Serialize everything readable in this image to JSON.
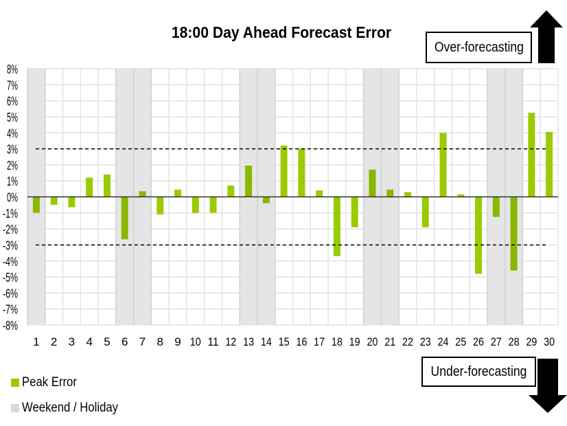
{
  "chart_data": {
    "type": "bar",
    "title": "18:00 Day Ahead Forecast Error",
    "categories": [
      "1",
      "2",
      "3",
      "4",
      "5",
      "6",
      "7",
      "8",
      "9",
      "10",
      "11",
      "12",
      "13",
      "14",
      "15",
      "16",
      "17",
      "18",
      "19",
      "20",
      "21",
      "22",
      "23",
      "24",
      "25",
      "26",
      "27",
      "28",
      "29",
      "30"
    ],
    "series": [
      {
        "name": "Peak Error",
        "unit": "%",
        "values": [
          -1.0,
          -0.5,
          -0.65,
          1.2,
          1.4,
          -2.65,
          0.35,
          -1.1,
          0.45,
          -1.0,
          -1.0,
          0.7,
          1.95,
          -0.4,
          3.2,
          3.0,
          0.4,
          -3.7,
          -1.9,
          1.7,
          0.45,
          0.3,
          -1.9,
          4.0,
          0.15,
          -4.8,
          -1.25,
          -4.6,
          5.25,
          4.05
        ]
      }
    ],
    "weekend_holiday_days": [
      "1",
      "6",
      "7",
      "13",
      "14",
      "20",
      "21",
      "27",
      "28"
    ],
    "weekend_holiday_label": "Weekend / Holiday",
    "ylim": [
      -8,
      8
    ],
    "yticks": [
      "-8%",
      "-7%",
      "-6%",
      "-5%",
      "-4%",
      "-3%",
      "-2%",
      "-1%",
      "0%",
      "1%",
      "2%",
      "3%",
      "4%",
      "5%",
      "6%",
      "7%",
      "8%"
    ],
    "threshold_lines": [
      3,
      -3
    ],
    "grid": true,
    "legend_position": "bottom-left",
    "xlabel": "",
    "ylabel": "",
    "colors": {
      "bar": "#99cc00",
      "bar_weekend": "#88b800",
      "weekend_band": "#e5e5e5",
      "grid": "#e3e3e3"
    }
  },
  "annotations": {
    "over": "Over-forecasting",
    "under": "Under-forecasting"
  }
}
